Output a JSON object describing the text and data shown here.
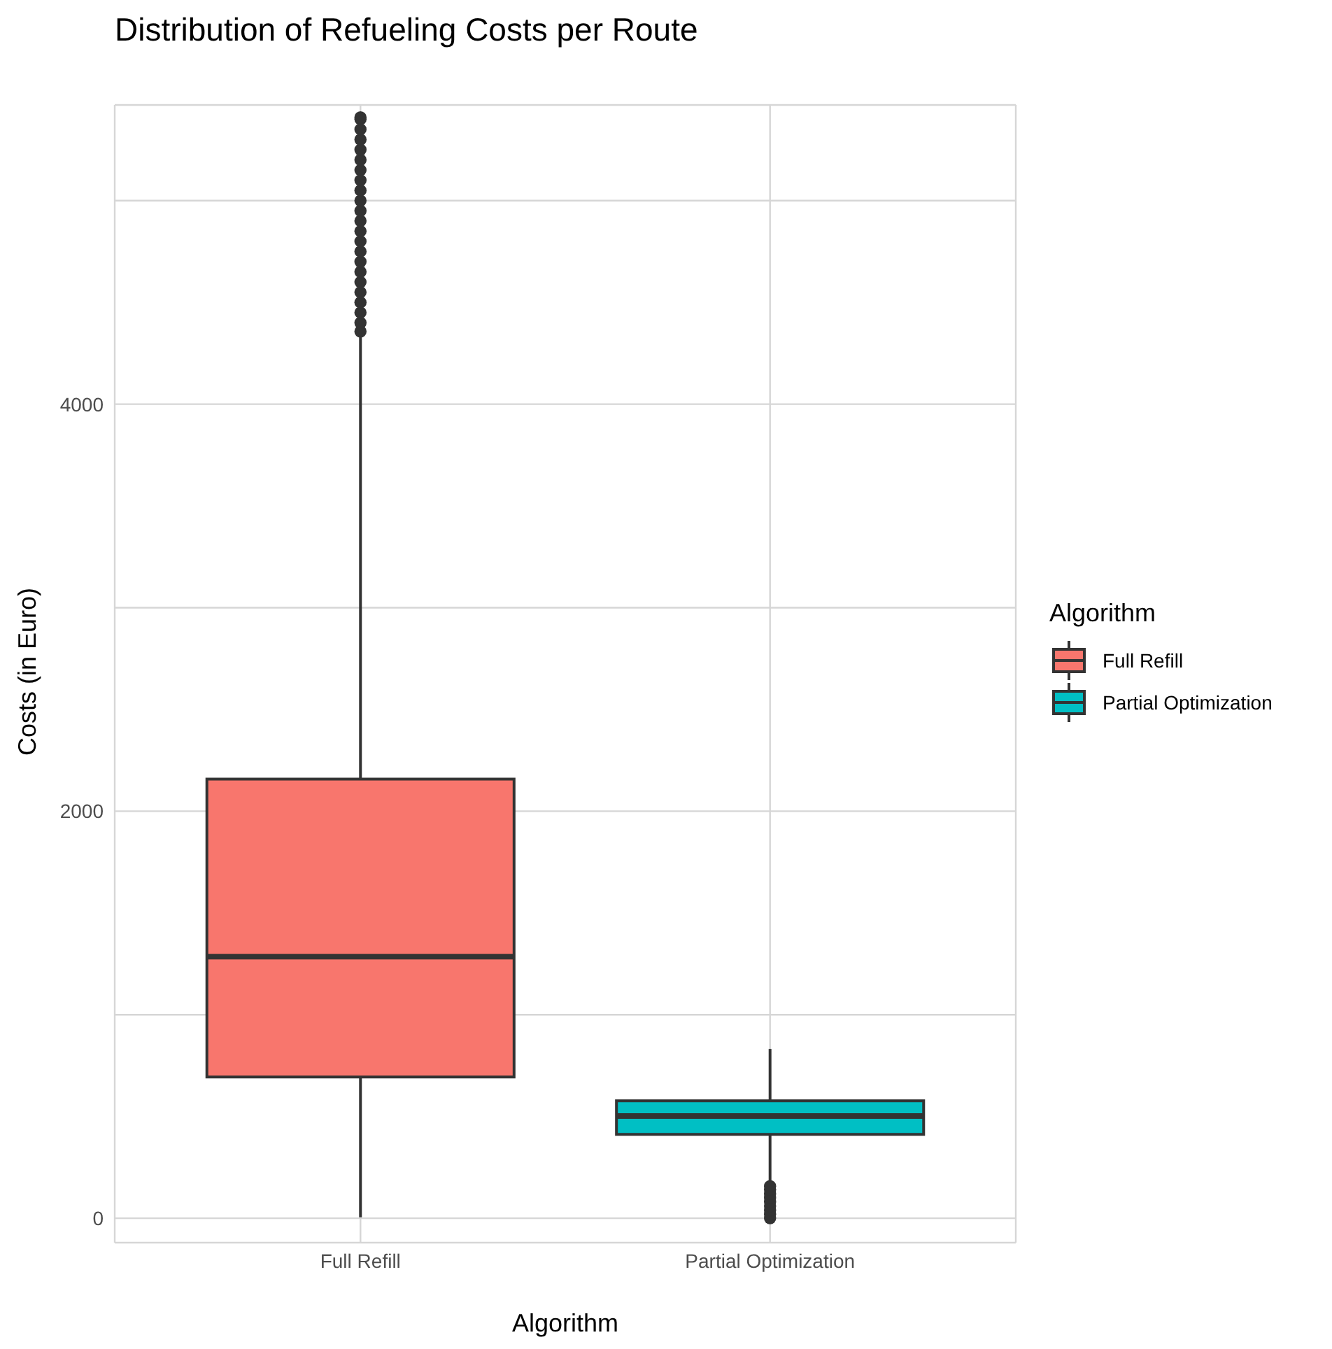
{
  "chart_data": {
    "type": "box",
    "title": "Distribution of Refueling Costs per Route",
    "xlabel": "Algorithm",
    "ylabel": "Costs (in Euro)",
    "legend_title": "Algorithm",
    "categories": [
      "Full Refill",
      "Partial Optimization"
    ],
    "series": [
      {
        "name": "Full Refill",
        "color": "#f8766d",
        "boxes": [
          {
            "low": 5,
            "q1": 694,
            "median": 1285,
            "q3": 2158,
            "high": 4337,
            "outliers": [
              4357,
              4400,
              4450,
              4500,
              4550,
              4600,
              4650,
              4700,
              4750,
              4800,
              4850,
              4900,
              4950,
              5000,
              5050,
              5100,
              5150,
              5200,
              5250,
              5300,
              5350,
              5400,
              5409
            ]
          },
          null
        ]
      },
      {
        "name": "Partial Optimization",
        "color": "#00bfc4",
        "boxes": [
          null,
          {
            "low": 179,
            "q1": 412,
            "median": 502,
            "q3": 577,
            "high": 832,
            "outliers": [
              0,
              20,
              40,
              60,
              80,
              100,
              120,
              140,
              158
            ]
          }
        ]
      }
    ],
    "ylim": [
      -120,
      5470
    ],
    "yticks": [
      0,
      {
        "value": 1000,
        "label": null
      },
      2000,
      {
        "value": 3000,
        "label": null
      },
      4000,
      {
        "value": 5000,
        "label": null
      }
    ],
    "grid": true,
    "legend": "right"
  }
}
